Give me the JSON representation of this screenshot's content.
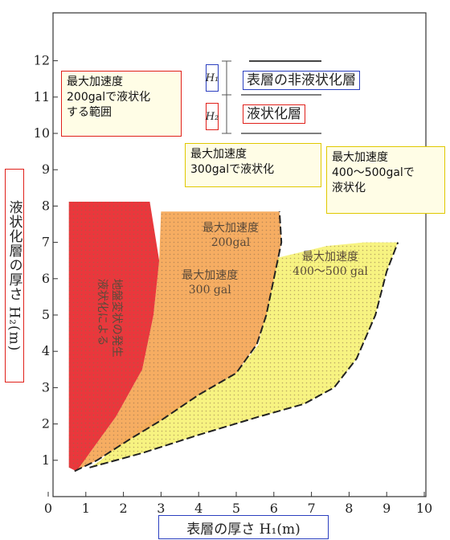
{
  "chart_data": {
    "type": "area",
    "x_ticks": [
      "0",
      "1",
      "2",
      "3",
      "4",
      "5",
      "6",
      "7",
      "8",
      "9",
      "10"
    ],
    "y_ticks": [
      "1",
      "2",
      "3",
      "4",
      "5",
      "6",
      "7",
      "8",
      "9",
      "10",
      "11",
      "12"
    ],
    "xlim": [
      0,
      10
    ],
    "ylim": [
      0,
      12.9
    ],
    "grid": false,
    "xlabel": "表層の厚さ H₁(m)",
    "ylabel": "液状化層の厚さ H₂(m)",
    "regions": [
      {
        "name": "最大加速度 400～500gal",
        "color": "#f7f27a",
        "points": [
          [
            1.1,
            0.8
          ],
          [
            2.5,
            1.2
          ],
          [
            4.0,
            1.7
          ],
          [
            5.6,
            2.2
          ],
          [
            6.8,
            2.55
          ],
          [
            7.6,
            3.0
          ],
          [
            8.2,
            3.8
          ],
          [
            8.7,
            5.0
          ],
          [
            9.0,
            6.2
          ],
          [
            9.3,
            7.0
          ],
          [
            8.4,
            7.0
          ],
          [
            7.4,
            6.9
          ],
          [
            6.0,
            6.55
          ],
          [
            5.9,
            5.8
          ],
          [
            5.7,
            4.8
          ],
          [
            5.6,
            4.2
          ],
          [
            5.0,
            3.4
          ],
          [
            4.0,
            2.8
          ],
          [
            3.0,
            2.3
          ],
          [
            2.0,
            1.6
          ],
          [
            1.4,
            1.0
          ]
        ]
      },
      {
        "name": "最大加速度 300gal",
        "color": "#f5a95a",
        "points": [
          [
            0.7,
            0.7
          ],
          [
            1.3,
            1.0
          ],
          [
            2.2,
            1.6
          ],
          [
            3.0,
            2.1
          ],
          [
            4.0,
            2.8
          ],
          [
            5.0,
            3.4
          ],
          [
            5.55,
            4.2
          ],
          [
            5.8,
            5.0
          ],
          [
            6.0,
            6.0
          ],
          [
            6.2,
            7.0
          ],
          [
            6.15,
            7.85
          ],
          [
            4.6,
            7.85
          ],
          [
            3.0,
            7.85
          ],
          [
            2.95,
            6.5
          ],
          [
            2.8,
            5.0
          ],
          [
            2.5,
            3.5
          ],
          [
            1.8,
            2.2
          ],
          [
            1.1,
            1.2
          ]
        ]
      },
      {
        "name": "液状化による地盤変状の発生",
        "color": "#e8262b",
        "points": [
          [
            0.55,
            0.8
          ],
          [
            0.55,
            8.12
          ],
          [
            2.7,
            8.12
          ],
          [
            2.95,
            6.5
          ],
          [
            2.8,
            5.0
          ],
          [
            2.5,
            3.5
          ],
          [
            1.8,
            2.2
          ],
          [
            1.1,
            1.2
          ],
          [
            0.75,
            0.7
          ]
        ]
      }
    ],
    "annotations": {
      "zone_200": "最大加速度\n200gal",
      "zone_300": "最大加速度\n300 gal",
      "zone_400": "最大加速度\n400～500 gal",
      "red_zone": "液状化による\n地盤変状の発生"
    }
  },
  "callouts": {
    "c200": "最大加速度\n200galで液状化\nする範囲",
    "c300": "最大加速度\n300galで液状化",
    "c400": "最大加速度\n400～500galで\n液状化"
  },
  "inset": {
    "surface_label": "表層の非液状化層",
    "liquefy_label": "液状化層",
    "h1": "H₁",
    "h2": "H₂"
  },
  "axes": {
    "xlabel": "表層の厚さ H₁(m)",
    "ylabel": "液状化層の厚さ H₂(m)"
  }
}
